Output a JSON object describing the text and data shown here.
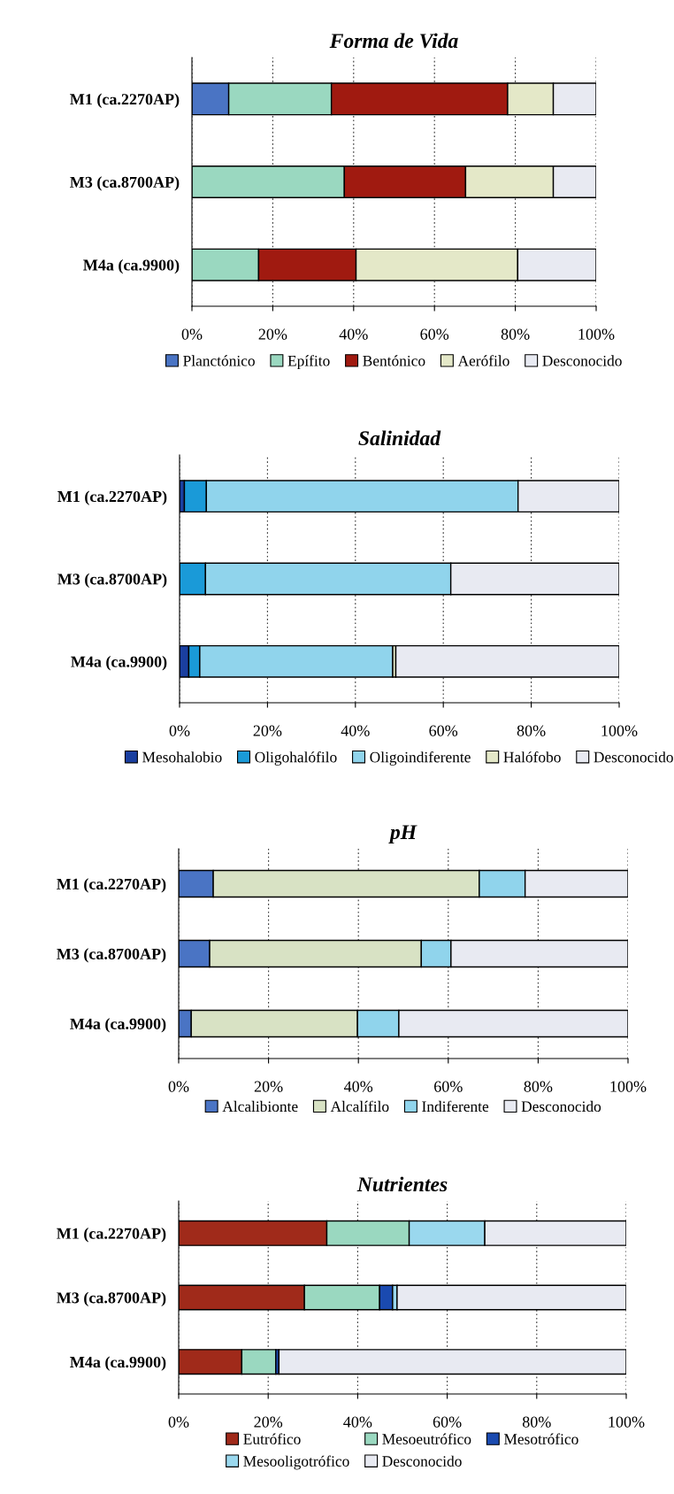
{
  "chart_data": [
    {
      "type": "bar",
      "orientation": "horizontal",
      "stacked": true,
      "title": "Forma de Vida",
      "categories": [
        "M1 (ca.2270AP)",
        "M3 (ca.8700AP)",
        "M4a (ca.9900)"
      ],
      "xlim": [
        0,
        100
      ],
      "xticks": [
        {
          "value": 0,
          "label": "0%"
        },
        {
          "value": 20,
          "label": "20%"
        },
        {
          "value": 40,
          "label": "40%"
        },
        {
          "value": 60,
          "label": "60%"
        },
        {
          "value": 80,
          "label": "80%"
        },
        {
          "value": 100,
          "label": "100%"
        }
      ],
      "grid": "x",
      "legend": "bottom",
      "series": [
        {
          "name": "Planctónico",
          "color": "#4a74c4",
          "values": [
            9.1,
            0,
            0
          ]
        },
        {
          "name": "Epífito",
          "color": "#9ad8c0",
          "values": [
            25.4,
            37.7,
            16.5
          ]
        },
        {
          "name": "Bentónico",
          "color": "#a01a10",
          "values": [
            43.6,
            30,
            24.1
          ]
        },
        {
          "name": "Aerófilo",
          "color": "#e4e8c8",
          "values": [
            11.3,
            21.7,
            40
          ]
        },
        {
          "name": "Desconocido",
          "color": "#e8eaf2",
          "values": [
            10.6,
            10.6,
            19.4
          ]
        }
      ]
    },
    {
      "type": "bar",
      "orientation": "horizontal",
      "stacked": true,
      "title": "Salinidad",
      "categories": [
        "M1 (ca.2270AP)",
        "M3 (ca.8700AP)",
        "M4a (ca.9900)"
      ],
      "xlim": [
        0,
        100
      ],
      "xticks": [
        {
          "value": 0,
          "label": "0%"
        },
        {
          "value": 20,
          "label": "20%"
        },
        {
          "value": 40,
          "label": "40%"
        },
        {
          "value": 60,
          "label": "60%"
        },
        {
          "value": 80,
          "label": "80%"
        },
        {
          "value": 100,
          "label": "100%"
        }
      ],
      "grid": "x",
      "legend": "bottom",
      "series": [
        {
          "name": "Mesohalobio",
          "color": "#1a3fa0",
          "values": [
            1.1,
            0,
            2.1
          ]
        },
        {
          "name": "Oligohalófilo",
          "color": "#1a9ad8",
          "values": [
            5.0,
            5.9,
            2.5
          ]
        },
        {
          "name": "Oligoindiferente",
          "color": "#90d4ec",
          "values": [
            70.9,
            55.8,
            43.9
          ]
        },
        {
          "name": "Halófobo",
          "color": "#e4e8c8",
          "values": [
            0,
            0,
            0.7
          ]
        },
        {
          "name": "Desconocido",
          "color": "#e8eaf2",
          "values": [
            23.0,
            38.3,
            50.8
          ]
        }
      ]
    },
    {
      "type": "bar",
      "orientation": "horizontal",
      "stacked": true,
      "title": "pH",
      "categories": [
        "M1 (ca.2270AP)",
        "M3 (ca.8700AP)",
        "M4a (ca.9900)"
      ],
      "xlim": [
        0,
        100
      ],
      "xticks": [
        {
          "value": 0,
          "label": "0%"
        },
        {
          "value": 20,
          "label": "20%"
        },
        {
          "value": 40,
          "label": "40%"
        },
        {
          "value": 60,
          "label": "60%"
        },
        {
          "value": 80,
          "label": "80%"
        },
        {
          "value": 100,
          "label": "100%"
        }
      ],
      "grid": "x",
      "legend": "bottom",
      "series": [
        {
          "name": "Alcalibionte",
          "color": "#4a74c4",
          "values": [
            7.7,
            6.9,
            2.8
          ]
        },
        {
          "name": "Alcalífilo",
          "color": "#d8e2c4",
          "values": [
            59.2,
            47.1,
            37.0
          ]
        },
        {
          "name": "Indiferente",
          "color": "#90d4ec",
          "values": [
            10.2,
            6.6,
            9.2
          ]
        },
        {
          "name": "Desconocido",
          "color": "#e8eaf2",
          "values": [
            22.9,
            39.4,
            51.0
          ]
        }
      ]
    },
    {
      "type": "bar",
      "orientation": "horizontal",
      "stacked": true,
      "title": "Nutrientes",
      "categories": [
        "M1 (ca.2270AP)",
        "M3 (ca.8700AP)",
        "M4a (ca.9900)"
      ],
      "xlim": [
        0,
        100
      ],
      "xticks": [
        {
          "value": 0,
          "label": "0%"
        },
        {
          "value": 20,
          "label": "20%"
        },
        {
          "value": 40,
          "label": "40%"
        },
        {
          "value": 60,
          "label": "60%"
        },
        {
          "value": 80,
          "label": "80%"
        },
        {
          "value": 100,
          "label": "100%"
        }
      ],
      "grid": "x",
      "legend": "bottom",
      "series": [
        {
          "name": "Eutrófico",
          "color": "#a02a1a",
          "values": [
            33.1,
            28.1,
            14.1
          ]
        },
        {
          "name": "Mesoeutrófico",
          "color": "#9ad8c0",
          "values": [
            18.4,
            16.8,
            7.6
          ]
        },
        {
          "name": "Mesotrófico",
          "color": "#1a4ab0",
          "values": [
            0,
            2.9,
            0.7
          ]
        },
        {
          "name": "Mesooligotrófico",
          "color": "#9ad8ee",
          "values": [
            16.9,
            1.0,
            0
          ]
        },
        {
          "name": "Desconocido",
          "color": "#e8eaf2",
          "values": [
            31.6,
            51.2,
            77.6
          ]
        }
      ]
    }
  ]
}
